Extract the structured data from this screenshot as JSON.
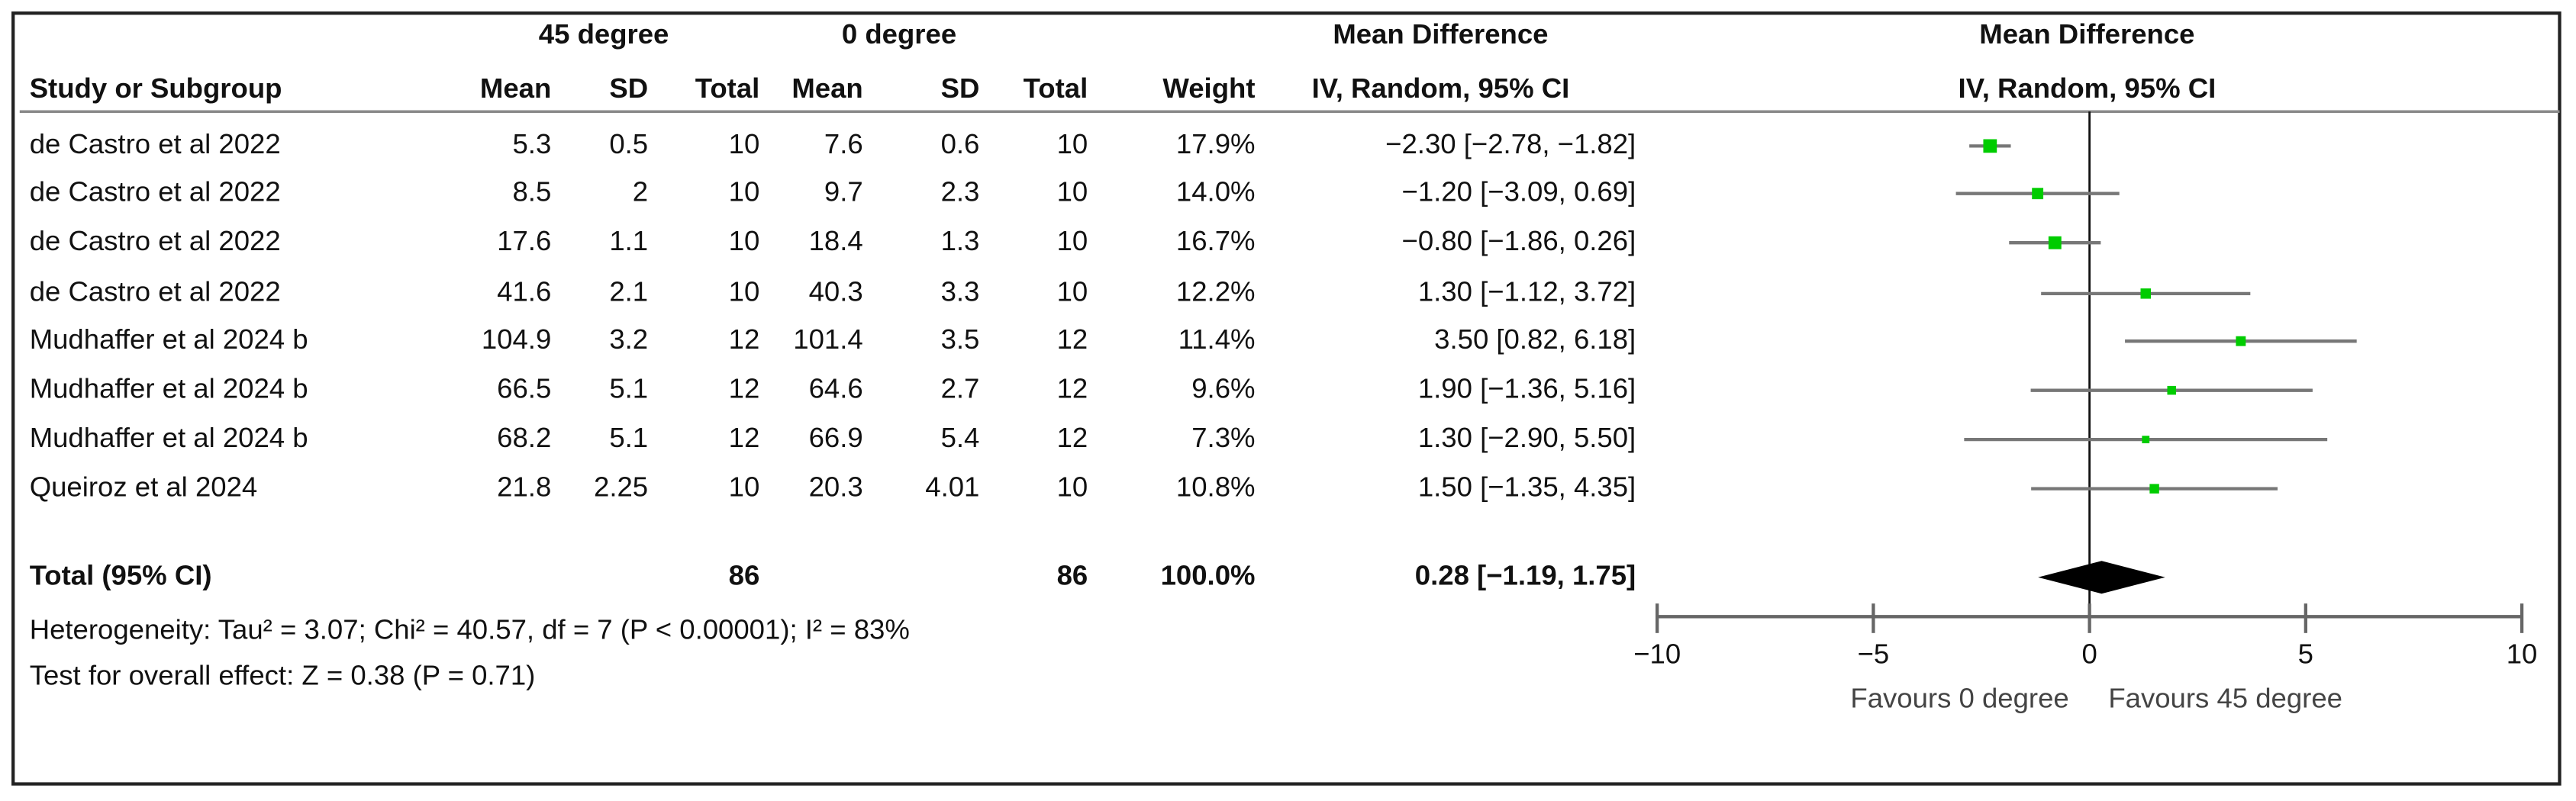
{
  "chart_data": {
    "type": "forest",
    "group_headers": [
      "45 degree",
      "0 degree",
      "Mean Difference",
      "Mean Difference"
    ],
    "columns": [
      "Study or Subgroup",
      "Mean",
      "SD",
      "Total",
      "Mean",
      "SD",
      "Total",
      "Weight",
      "IV, Random, 95% CI",
      "IV, Random, 95% CI"
    ],
    "studies": [
      {
        "name": "de Castro et al 2022",
        "mean1": 5.3,
        "sd1": 0.5,
        "n1": 10,
        "mean2": 7.6,
        "sd2": 0.6,
        "n2": 10,
        "weight": 17.9,
        "weight_label": "17.9%",
        "md": -2.3,
        "ci_low": -2.78,
        "ci_high": -1.82,
        "ci_label": "−2.30 [−2.78, −1.82]"
      },
      {
        "name": "de Castro et al 2022",
        "mean1": 8.5,
        "sd1": 2,
        "n1": 10,
        "mean2": 9.7,
        "sd2": 2.3,
        "n2": 10,
        "weight": 14.0,
        "weight_label": "14.0%",
        "md": -1.2,
        "ci_low": -3.09,
        "ci_high": 0.69,
        "ci_label": "−1.20 [−3.09, 0.69]"
      },
      {
        "name": "de Castro et al 2022",
        "mean1": 17.6,
        "sd1": 1.1,
        "n1": 10,
        "mean2": 18.4,
        "sd2": 1.3,
        "n2": 10,
        "weight": 16.7,
        "weight_label": "16.7%",
        "md": -0.8,
        "ci_low": -1.86,
        "ci_high": 0.26,
        "ci_label": "−0.80 [−1.86, 0.26]"
      },
      {
        "name": "de Castro et al 2022",
        "mean1": 41.6,
        "sd1": 2.1,
        "n1": 10,
        "mean2": 40.3,
        "sd2": 3.3,
        "n2": 10,
        "weight": 12.2,
        "weight_label": "12.2%",
        "md": 1.3,
        "ci_low": -1.12,
        "ci_high": 3.72,
        "ci_label": "1.30 [−1.12, 3.72]"
      },
      {
        "name": "Mudhaffer et al 2024 b",
        "mean1": 104.9,
        "sd1": 3.2,
        "n1": 12,
        "mean2": 101.4,
        "sd2": 3.5,
        "n2": 12,
        "weight": 11.4,
        "weight_label": "11.4%",
        "md": 3.5,
        "ci_low": 0.82,
        "ci_high": 6.18,
        "ci_label": "3.50 [0.82, 6.18]"
      },
      {
        "name": "Mudhaffer et al 2024 b",
        "mean1": 66.5,
        "sd1": 5.1,
        "n1": 12,
        "mean2": 64.6,
        "sd2": 2.7,
        "n2": 12,
        "weight": 9.6,
        "weight_label": "9.6%",
        "md": 1.9,
        "ci_low": -1.36,
        "ci_high": 5.16,
        "ci_label": "1.90 [−1.36, 5.16]"
      },
      {
        "name": "Mudhaffer et al 2024 b",
        "mean1": 68.2,
        "sd1": 5.1,
        "n1": 12,
        "mean2": 66.9,
        "sd2": 5.4,
        "n2": 12,
        "weight": 7.3,
        "weight_label": "7.3%",
        "md": 1.3,
        "ci_low": -2.9,
        "ci_high": 5.5,
        "ci_label": "1.30 [−2.90, 5.50]"
      },
      {
        "name": "Queiroz et al 2024",
        "mean1": 21.8,
        "sd1": 2.25,
        "n1": 10,
        "mean2": 20.3,
        "sd2": 4.01,
        "n2": 10,
        "weight": 10.8,
        "weight_label": "10.8%",
        "md": 1.5,
        "ci_low": -1.35,
        "ci_high": 4.35,
        "ci_label": "1.50 [−1.35, 4.35]"
      }
    ],
    "total": {
      "name": "Total (95% CI)",
      "n1": 86,
      "n2": 86,
      "weight": 100,
      "weight_label": "100.0%",
      "md": 0.28,
      "ci_low": -1.19,
      "ci_high": 1.75,
      "ci_label": "0.28 [−1.19, 1.75]"
    },
    "heterogeneity": "Heterogeneity: Tau² = 3.07; Chi² = 40.57, df = 7 (P < 0.00001); I² = 83%",
    "overall_effect": "Test for overall effect: Z = 0.38 (P = 0.71)",
    "xlim": [
      -10,
      10
    ],
    "xticks": [
      {
        "value": -10,
        "label": "−10"
      },
      {
        "value": -5,
        "label": "−5"
      },
      0,
      5,
      10
    ],
    "x_labels": [
      "Favours 0 degree",
      "Favours 45 degree"
    ],
    "color": "#00cc00"
  }
}
